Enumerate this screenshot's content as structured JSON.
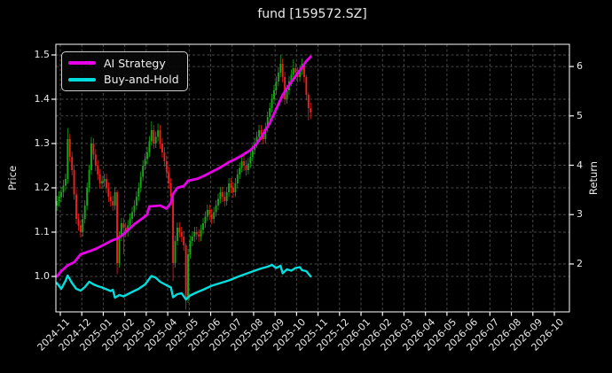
{
  "title": "fund [159572.SZ]",
  "figure": {
    "background": "#000000",
    "text_color": "#eaeaea",
    "grid_color": "#474747",
    "spine_color": "#ffffff"
  },
  "legend": {
    "position": "upper left",
    "items": [
      {
        "label": "AI Strategy",
        "color": "#e800e8"
      },
      {
        "label": "Buy-and-Hold",
        "color": "#00dede"
      }
    ]
  },
  "chart_data": {
    "type": "candlestick+line",
    "title": "fund [159572.SZ]",
    "grid": true,
    "legend_position": "upper left",
    "x_axis": {
      "tick_labels": [
        "2024-11",
        "2024-12",
        "2025-01",
        "2025-02",
        "2025-03",
        "2025-04",
        "2025-05",
        "2025-06",
        "2025-07",
        "2025-08",
        "2025-09",
        "2025-10",
        "2025-11",
        "2025-12",
        "2026-01",
        "2026-02",
        "2026-03",
        "2026-04",
        "2026-05",
        "2026-06",
        "2026-07",
        "2026-08",
        "2026-09",
        "2026-10"
      ],
      "data_span": [
        "2024-11",
        "2025-11"
      ],
      "note": "price/line data occupies 2024-11 through early 2025-11; 2025-12 to 2026-10 region is empty grid"
    },
    "left_axis": {
      "label": "Price",
      "ticks": [
        1.0,
        1.1,
        1.2,
        1.3,
        1.4,
        1.5
      ],
      "range": [
        0.92,
        1.524
      ]
    },
    "right_axis": {
      "label": "Return",
      "ticks": [
        2,
        3,
        4,
        5,
        6
      ],
      "range": [
        1.03,
        6.45
      ]
    },
    "candles": {
      "up_color": "#17a817",
      "down_color": "#ef2020",
      "interval": "2-trading-day bars, Nov 2024 to early Nov 2025",
      "ohlc": [
        [
          1.16,
          1.182,
          1.148,
          1.17
        ],
        [
          1.17,
          1.192,
          1.158,
          1.18
        ],
        [
          1.18,
          1.202,
          1.168,
          1.19
        ],
        [
          1.19,
          1.218,
          1.178,
          1.205
        ],
        [
          1.205,
          1.232,
          1.193,
          1.22
        ],
        [
          1.22,
          1.335,
          1.21,
          1.31
        ],
        [
          1.31,
          1.322,
          1.258,
          1.27
        ],
        [
          1.27,
          1.282,
          1.228,
          1.24
        ],
        [
          1.24,
          1.252,
          1.173,
          1.185
        ],
        [
          1.185,
          1.197,
          1.118,
          1.13
        ],
        [
          1.13,
          1.142,
          1.103,
          1.115
        ],
        [
          1.115,
          1.127,
          1.088,
          1.1
        ],
        [
          1.1,
          1.142,
          1.09,
          1.13
        ],
        [
          1.13,
          1.172,
          1.12,
          1.16
        ],
        [
          1.16,
          1.212,
          1.15,
          1.2
        ],
        [
          1.2,
          1.252,
          1.19,
          1.24
        ],
        [
          1.24,
          1.315,
          1.23,
          1.3
        ],
        [
          1.3,
          1.312,
          1.263,
          1.275
        ],
        [
          1.275,
          1.287,
          1.238,
          1.25
        ],
        [
          1.25,
          1.262,
          1.218,
          1.23
        ],
        [
          1.23,
          1.242,
          1.198,
          1.21
        ],
        [
          1.21,
          1.227,
          1.198,
          1.215
        ],
        [
          1.215,
          1.232,
          1.203,
          1.22
        ],
        [
          1.22,
          1.232,
          1.188,
          1.2
        ],
        [
          1.2,
          1.212,
          1.168,
          1.18
        ],
        [
          1.18,
          1.192,
          1.158,
          1.17
        ],
        [
          1.17,
          1.182,
          1.148,
          1.16
        ],
        [
          1.16,
          1.202,
          1.15,
          1.19
        ],
        [
          1.19,
          1.195,
          1.005,
          1.03
        ],
        [
          1.03,
          1.102,
          1.02,
          1.09
        ],
        [
          1.09,
          1.132,
          1.08,
          1.12
        ],
        [
          1.12,
          1.132,
          1.05,
          1.11
        ],
        [
          1.11,
          1.122,
          1.088,
          1.1
        ],
        [
          1.1,
          1.127,
          1.09,
          1.115
        ],
        [
          1.115,
          1.142,
          1.105,
          1.13
        ],
        [
          1.13,
          1.157,
          1.12,
          1.145
        ],
        [
          1.145,
          1.172,
          1.135,
          1.16
        ],
        [
          1.16,
          1.192,
          1.15,
          1.18
        ],
        [
          1.18,
          1.212,
          1.17,
          1.2
        ],
        [
          1.2,
          1.237,
          1.19,
          1.225
        ],
        [
          1.225,
          1.262,
          1.215,
          1.25
        ],
        [
          1.25,
          1.277,
          1.24,
          1.265
        ],
        [
          1.265,
          1.292,
          1.253,
          1.28
        ],
        [
          1.28,
          1.317,
          1.27,
          1.305
        ],
        [
          1.305,
          1.35,
          1.295,
          1.33
        ],
        [
          1.33,
          1.342,
          1.288,
          1.3
        ],
        [
          1.3,
          1.327,
          1.29,
          1.315
        ],
        [
          1.315,
          1.345,
          1.305,
          1.33
        ],
        [
          1.33,
          1.342,
          1.288,
          1.3
        ],
        [
          1.3,
          1.312,
          1.268,
          1.28
        ],
        [
          1.28,
          1.292,
          1.248,
          1.26
        ],
        [
          1.26,
          1.272,
          1.223,
          1.235
        ],
        [
          1.235,
          1.247,
          1.198,
          1.21
        ],
        [
          1.21,
          1.222,
          1.168,
          1.18
        ],
        [
          1.18,
          1.185,
          0.99,
          1.03
        ],
        [
          1.03,
          1.092,
          1.02,
          1.08
        ],
        [
          1.08,
          1.122,
          1.07,
          1.11
        ],
        [
          1.11,
          1.122,
          1.088,
          1.1
        ],
        [
          1.1,
          1.112,
          1.078,
          1.09
        ],
        [
          1.09,
          1.102,
          1.058,
          1.07
        ],
        [
          1.07,
          1.075,
          0.925,
          0.95
        ],
        [
          0.95,
          1.062,
          0.94,
          1.05
        ],
        [
          1.05,
          1.092,
          1.04,
          1.08
        ],
        [
          1.08,
          1.102,
          1.068,
          1.09
        ],
        [
          1.09,
          1.112,
          1.078,
          1.1
        ],
        [
          1.1,
          1.112,
          1.083,
          1.095
        ],
        [
          1.095,
          1.107,
          1.078,
          1.09
        ],
        [
          1.09,
          1.117,
          1.08,
          1.105
        ],
        [
          1.105,
          1.132,
          1.095,
          1.12
        ],
        [
          1.12,
          1.147,
          1.11,
          1.135
        ],
        [
          1.135,
          1.162,
          1.125,
          1.15
        ],
        [
          1.15,
          1.162,
          1.128,
          1.14
        ],
        [
          1.14,
          1.152,
          1.118,
          1.13
        ],
        [
          1.13,
          1.157,
          1.12,
          1.145
        ],
        [
          1.145,
          1.172,
          1.135,
          1.16
        ],
        [
          1.16,
          1.187,
          1.15,
          1.175
        ],
        [
          1.175,
          1.202,
          1.165,
          1.19
        ],
        [
          1.19,
          1.202,
          1.168,
          1.18
        ],
        [
          1.18,
          1.192,
          1.158,
          1.17
        ],
        [
          1.17,
          1.202,
          1.16,
          1.19
        ],
        [
          1.19,
          1.222,
          1.18,
          1.21
        ],
        [
          1.21,
          1.222,
          1.188,
          1.2
        ],
        [
          1.2,
          1.212,
          1.178,
          1.19
        ],
        [
          1.19,
          1.222,
          1.18,
          1.21
        ],
        [
          1.21,
          1.242,
          1.2,
          1.23
        ],
        [
          1.23,
          1.257,
          1.22,
          1.245
        ],
        [
          1.245,
          1.272,
          1.235,
          1.26
        ],
        [
          1.26,
          1.272,
          1.238,
          1.25
        ],
        [
          1.25,
          1.262,
          1.228,
          1.24
        ],
        [
          1.24,
          1.267,
          1.23,
          1.255
        ],
        [
          1.255,
          1.282,
          1.245,
          1.27
        ],
        [
          1.27,
          1.297,
          1.26,
          1.285
        ],
        [
          1.285,
          1.312,
          1.275,
          1.3
        ],
        [
          1.3,
          1.327,
          1.29,
          1.315
        ],
        [
          1.315,
          1.342,
          1.305,
          1.33
        ],
        [
          1.33,
          1.342,
          1.308,
          1.32
        ],
        [
          1.32,
          1.332,
          1.298,
          1.31
        ],
        [
          1.31,
          1.347,
          1.3,
          1.335
        ],
        [
          1.335,
          1.372,
          1.325,
          1.36
        ],
        [
          1.36,
          1.392,
          1.35,
          1.38
        ],
        [
          1.38,
          1.412,
          1.37,
          1.4
        ],
        [
          1.4,
          1.432,
          1.39,
          1.42
        ],
        [
          1.42,
          1.452,
          1.41,
          1.44
        ],
        [
          1.44,
          1.472,
          1.43,
          1.46
        ],
        [
          1.46,
          1.5,
          1.45,
          1.48
        ],
        [
          1.48,
          1.492,
          1.438,
          1.45
        ],
        [
          1.45,
          1.462,
          1.388,
          1.4
        ],
        [
          1.4,
          1.432,
          1.39,
          1.42
        ],
        [
          1.42,
          1.452,
          1.41,
          1.44
        ],
        [
          1.44,
          1.467,
          1.43,
          1.455
        ],
        [
          1.455,
          1.49,
          1.445,
          1.47
        ],
        [
          1.47,
          1.482,
          1.448,
          1.46
        ],
        [
          1.46,
          1.472,
          1.438,
          1.45
        ],
        [
          1.45,
          1.477,
          1.44,
          1.465
        ],
        [
          1.465,
          1.492,
          1.455,
          1.48
        ],
        [
          1.48,
          1.485,
          1.438,
          1.45
        ],
        [
          1.45,
          1.455,
          1.398,
          1.41
        ],
        [
          1.41,
          1.415,
          1.352,
          1.38
        ],
        [
          1.38,
          1.392,
          1.355,
          1.37
        ]
      ]
    },
    "series": [
      {
        "name": "AI Strategy",
        "color": "#e800e8",
        "axis": "left (normalized, starts at 1.0)",
        "points": [
          [
            0,
            1.0
          ],
          [
            2,
            1.012
          ],
          [
            5,
            1.025
          ],
          [
            8,
            1.032
          ],
          [
            11,
            1.05
          ],
          [
            14,
            1.055
          ],
          [
            18,
            1.062
          ],
          [
            22,
            1.072
          ],
          [
            26,
            1.082
          ],
          [
            28,
            1.085
          ],
          [
            30,
            1.092
          ],
          [
            32,
            1.1
          ],
          [
            36,
            1.118
          ],
          [
            40,
            1.132
          ],
          [
            42,
            1.14
          ],
          [
            43,
            1.158
          ],
          [
            48,
            1.16
          ],
          [
            51,
            1.153
          ],
          [
            53,
            1.166
          ],
          [
            54,
            1.186
          ],
          [
            56,
            1.2
          ],
          [
            59,
            1.204
          ],
          [
            61,
            1.216
          ],
          [
            65,
            1.22
          ],
          [
            68,
            1.226
          ],
          [
            72,
            1.236
          ],
          [
            76,
            1.246
          ],
          [
            80,
            1.258
          ],
          [
            83,
            1.265
          ],
          [
            86,
            1.273
          ],
          [
            90,
            1.285
          ],
          [
            93,
            1.3
          ],
          [
            96,
            1.322
          ],
          [
            99,
            1.346
          ],
          [
            102,
            1.378
          ],
          [
            105,
            1.41
          ],
          [
            108,
            1.432
          ],
          [
            111,
            1.452
          ],
          [
            114,
            1.472
          ],
          [
            116,
            1.486
          ],
          [
            118,
            1.496
          ]
        ]
      },
      {
        "name": "Buy-and-Hold",
        "color": "#00dede",
        "axis": "left (normalized, starts near 1.0)",
        "points": [
          [
            0,
            0.985
          ],
          [
            2,
            0.972
          ],
          [
            4,
            0.99
          ],
          [
            5,
            1.002
          ],
          [
            7,
            0.985
          ],
          [
            9,
            0.972
          ],
          [
            11,
            0.968
          ],
          [
            13,
            0.976
          ],
          [
            15,
            0.988
          ],
          [
            17,
            0.982
          ],
          [
            19,
            0.978
          ],
          [
            21,
            0.975
          ],
          [
            23,
            0.971
          ],
          [
            25,
            0.967
          ],
          [
            26,
            0.97
          ],
          [
            27,
            0.952
          ],
          [
            29,
            0.958
          ],
          [
            31,
            0.955
          ],
          [
            33,
            0.96
          ],
          [
            35,
            0.965
          ],
          [
            38,
            0.972
          ],
          [
            41,
            0.982
          ],
          [
            44,
            1.001
          ],
          [
            46,
            0.997
          ],
          [
            48,
            0.988
          ],
          [
            51,
            0.98
          ],
          [
            53,
            0.975
          ],
          [
            54,
            0.953
          ],
          [
            56,
            0.96
          ],
          [
            58,
            0.962
          ],
          [
            60,
            0.948
          ],
          [
            62,
            0.957
          ],
          [
            65,
            0.964
          ],
          [
            68,
            0.97
          ],
          [
            72,
            0.979
          ],
          [
            76,
            0.985
          ],
          [
            80,
            0.991
          ],
          [
            84,
            0.999
          ],
          [
            88,
            1.006
          ],
          [
            92,
            1.013
          ],
          [
            95,
            1.018
          ],
          [
            98,
            1.022
          ],
          [
            100,
            1.026
          ],
          [
            102,
            1.019
          ],
          [
            104,
            1.024
          ],
          [
            105,
            1.007
          ],
          [
            107,
            1.016
          ],
          [
            109,
            1.013
          ],
          [
            111,
            1.019
          ],
          [
            113,
            1.021
          ],
          [
            114,
            1.014
          ],
          [
            116,
            1.012
          ],
          [
            118,
            1.0
          ]
        ]
      }
    ]
  }
}
